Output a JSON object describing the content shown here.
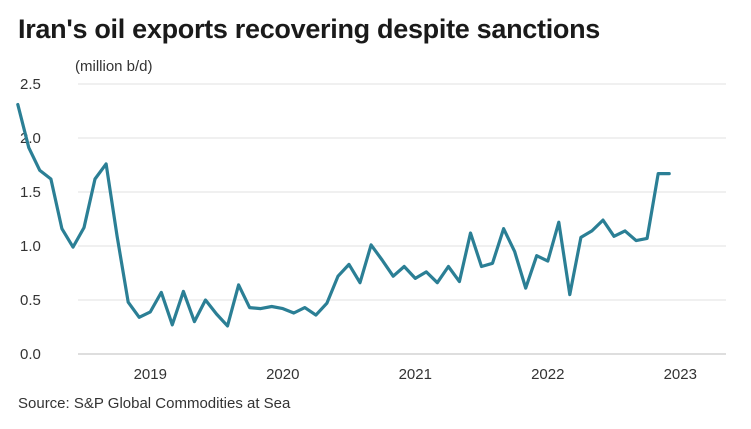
{
  "chart_data": {
    "type": "line",
    "title": "Iran's oil exports recovering despite sanctions",
    "unit_label": "(million b/d)",
    "source": "Source: S&P Global Commodities at Sea",
    "xlabel": "",
    "ylabel": "(million b/d)",
    "ylim": [
      0,
      2.5
    ],
    "y_ticks": [
      "0.0",
      "0.5",
      "1.0",
      "1.5",
      "2.0",
      "2.5"
    ],
    "x_ticks": [
      "2019",
      "2020",
      "2021",
      "2022",
      "2023"
    ],
    "grid": true,
    "legend": "none",
    "line_color": "#2b7f95",
    "series": [
      {
        "x": [
          "2018-07",
          "2018-08",
          "2018-09",
          "2018-10",
          "2018-11",
          "2018-12",
          "2019-01",
          "2019-02",
          "2019-03",
          "2019-04",
          "2019-05",
          "2019-06",
          "2019-07",
          "2019-08",
          "2019-09",
          "2019-10",
          "2019-11",
          "2019-12",
          "2020-01",
          "2020-02",
          "2020-03",
          "2020-04",
          "2020-05",
          "2020-06",
          "2020-07",
          "2020-08",
          "2020-09",
          "2020-10",
          "2020-11",
          "2020-12",
          "2021-01",
          "2021-02",
          "2021-03",
          "2021-04",
          "2021-05",
          "2021-06",
          "2021-07",
          "2021-08",
          "2021-09",
          "2021-10",
          "2021-11",
          "2021-12",
          "2022-01",
          "2022-02",
          "2022-03",
          "2022-04",
          "2022-05",
          "2022-06",
          "2022-07",
          "2022-08",
          "2022-09",
          "2022-10",
          "2022-11",
          "2022-12",
          "2023-01",
          "2023-02",
          "2023-03",
          "2023-04",
          "2023-05",
          "2023-06"
        ],
        "values": [
          2.31,
          1.91,
          1.7,
          1.62,
          1.16,
          0.99,
          1.17,
          1.62,
          1.76,
          1.09,
          0.48,
          0.34,
          0.39,
          0.57,
          0.27,
          0.58,
          0.3,
          0.5,
          0.37,
          0.26,
          0.64,
          0.43,
          0.42,
          0.44,
          0.42,
          0.38,
          0.43,
          0.36,
          0.47,
          0.72,
          0.83,
          0.66,
          1.01,
          0.87,
          0.72,
          0.81,
          0.7,
          0.76,
          0.66,
          0.81,
          0.67,
          1.12,
          0.81,
          0.84,
          1.16,
          0.95,
          0.61,
          0.91,
          0.86,
          1.22,
          0.55,
          1.08,
          1.14,
          1.24,
          1.09,
          1.14,
          1.05,
          1.07,
          1.67,
          1.67
        ]
      }
    ]
  }
}
